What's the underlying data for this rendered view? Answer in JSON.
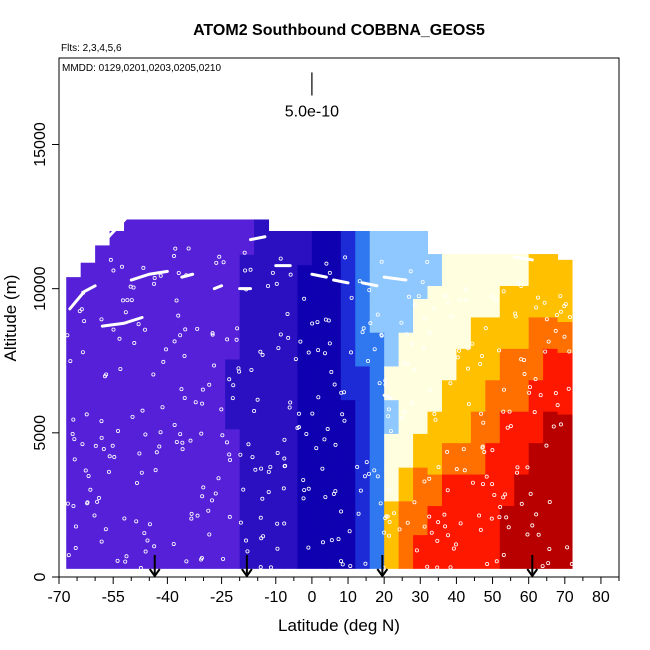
{
  "chart_data": {
    "type": "heatmap",
    "title": "ATOM2 Southbound COBBNA_GEOS5",
    "flights_note": "Flts: 2,3,4,5,6",
    "dates_note": "MMDD: 0129,0201,0203,0205,0210",
    "xlabel": "Latitude (deg N)",
    "ylabel": "Altitude (m)",
    "xlim": [
      -70,
      85
    ],
    "ylim": [
      0,
      18000
    ],
    "x_ticks_major": [
      -70,
      -55,
      -40,
      -25,
      -10,
      0,
      10,
      20,
      30,
      40,
      50,
      60,
      70,
      80
    ],
    "x_tick_labels": [
      "-70",
      "-55",
      "-40",
      "-25",
      "-10",
      "0",
      "10",
      "20",
      "30",
      "40",
      "50",
      "60",
      "70",
      "80"
    ],
    "x_ticks_minor": [
      -65,
      -60,
      -50,
      -45,
      -35,
      -30,
      -20,
      -15,
      -5,
      5,
      15,
      25,
      35,
      45,
      55,
      65,
      75,
      85
    ],
    "y_ticks": [
      0,
      5000,
      10000,
      15000
    ],
    "y_tick_labels": [
      "0",
      "5000",
      "10000",
      "15000"
    ],
    "scale_bar_label": "5.0e-10",
    "scale_bar": {
      "x": 0,
      "y_bottom": 16700,
      "y_top": 17500
    },
    "arrows_lat": [
      -43.5,
      -18,
      19.5,
      61
    ],
    "color_scale": [
      "#7a2ae8",
      "#5520d8",
      "#2a10c0",
      "#0f00b0",
      "#1c2bd6",
      "#2f78f0",
      "#8ec8ff",
      "#ffffe0",
      "#ffc000",
      "#ff7000",
      "#ff1800",
      "#b80000"
    ],
    "columns": [
      {
        "lat": -66,
        "top": 10400,
        "vals": [
          0.6,
          0.6,
          0.6,
          0.6,
          0.6,
          0.6,
          0.6,
          0.6,
          0.6,
          0.6
        ]
      },
      {
        "lat": -62,
        "top": 10900,
        "vals": [
          0.6,
          0.6,
          0.6,
          0.6,
          0.6,
          0.6,
          0.6,
          0.6,
          0.6,
          0.6
        ]
      },
      {
        "lat": -58,
        "top": 11500,
        "vals": [
          0.6,
          0.6,
          0.6,
          0.6,
          0.6,
          0.6,
          0.6,
          0.6,
          0.6,
          0.6
        ]
      },
      {
        "lat": -54,
        "top": 12000,
        "vals": [
          0.6,
          0.6,
          0.6,
          0.6,
          0.6,
          0.6,
          0.6,
          0.6,
          0.6,
          0.5
        ]
      },
      {
        "lat": -50,
        "top": 12400,
        "vals": [
          0.6,
          0.6,
          0.6,
          0.6,
          0.6,
          0.6,
          0.6,
          0.6,
          0.6,
          0.5
        ]
      },
      {
        "lat": -46,
        "top": 12400,
        "vals": [
          0.6,
          0.6,
          0.6,
          0.6,
          0.6,
          0.6,
          0.6,
          0.6,
          0.6,
          0.5
        ]
      },
      {
        "lat": -42,
        "top": 12400,
        "vals": [
          0.7,
          0.7,
          0.7,
          0.7,
          0.7,
          0.7,
          0.6,
          0.6,
          0.6,
          0.5
        ]
      },
      {
        "lat": -38,
        "top": 12400,
        "vals": [
          0.7,
          0.7,
          0.7,
          0.7,
          0.7,
          0.7,
          0.7,
          0.6,
          0.6,
          0.5
        ]
      },
      {
        "lat": -34,
        "top": 12400,
        "vals": [
          0.7,
          0.7,
          0.7,
          0.7,
          0.7,
          0.7,
          0.7,
          0.7,
          0.6,
          0.5
        ]
      },
      {
        "lat": -30,
        "top": 12400,
        "vals": [
          0.8,
          0.8,
          0.8,
          0.8,
          0.8,
          0.8,
          0.7,
          0.7,
          0.6,
          0.5
        ]
      },
      {
        "lat": -26,
        "top": 12400,
        "vals": [
          0.9,
          0.9,
          0.9,
          0.9,
          0.9,
          0.9,
          0.8,
          0.7,
          0.7,
          0.6
        ]
      },
      {
        "lat": -22,
        "top": 12400,
        "vals": [
          1.4,
          1.4,
          1.4,
          1.4,
          1.5,
          1.5,
          1.4,
          1.3,
          1.2,
          1.1
        ]
      },
      {
        "lat": -18,
        "top": 12400,
        "vals": [
          1.6,
          1.6,
          1.6,
          1.6,
          1.6,
          1.7,
          1.6,
          1.6,
          1.5,
          1.4
        ]
      },
      {
        "lat": -14,
        "top": 12400,
        "vals": [
          1.8,
          1.8,
          1.8,
          1.8,
          1.8,
          1.8,
          1.8,
          1.7,
          1.7,
          1.6
        ]
      },
      {
        "lat": -10,
        "top": 12000,
        "vals": [
          2.0,
          2.0,
          2.0,
          2.0,
          2.0,
          2.0,
          2.0,
          2.0,
          1.9,
          1.8
        ]
      },
      {
        "lat": -6,
        "top": 12000,
        "vals": [
          2.3,
          2.3,
          2.3,
          2.3,
          2.3,
          2.3,
          2.3,
          2.2,
          2.2,
          2.1
        ]
      },
      {
        "lat": -2,
        "top": 12000,
        "vals": [
          2.7,
          2.7,
          2.7,
          2.7,
          2.7,
          2.7,
          2.6,
          2.6,
          2.5,
          2.4
        ]
      },
      {
        "lat": 2,
        "top": 12000,
        "vals": [
          2.9,
          2.9,
          2.9,
          2.9,
          2.9,
          2.9,
          2.9,
          2.8,
          2.8,
          2.7
        ]
      },
      {
        "lat": 6,
        "top": 12000,
        "vals": [
          3.0,
          3.0,
          3.0,
          3.0,
          3.1,
          3.1,
          3.1,
          3.1,
          3.2,
          3.2
        ]
      },
      {
        "lat": 10,
        "top": 12000,
        "vals": [
          3.2,
          3.2,
          3.2,
          3.3,
          3.4,
          3.6,
          3.7,
          3.8,
          3.9,
          4.0
        ]
      },
      {
        "lat": 14,
        "top": 12000,
        "vals": [
          4.0,
          4.0,
          4.0,
          4.0,
          4.1,
          4.3,
          4.5,
          4.6,
          4.6,
          4.5
        ]
      },
      {
        "lat": 18,
        "top": 12000,
        "vals": [
          5.0,
          5.0,
          5.0,
          5.0,
          5.0,
          5.2,
          5.4,
          5.5,
          5.6,
          5.5
        ]
      },
      {
        "lat": 22,
        "top": 12000,
        "vals": [
          8.0,
          7.5,
          7.0,
          6.5,
          6.4,
          6.5,
          6.2,
          6.0,
          6.0,
          5.8
        ]
      },
      {
        "lat": 26,
        "top": 12000,
        "vals": [
          9.2,
          8.5,
          7.8,
          7.0,
          6.8,
          6.8,
          6.5,
          6.3,
          6.2,
          6.0
        ]
      },
      {
        "lat": 30,
        "top": 12000,
        "vals": [
          9.5,
          9.0,
          8.5,
          7.6,
          7.2,
          7.0,
          6.8,
          6.5,
          6.4,
          6.2
        ]
      },
      {
        "lat": 34,
        "top": 11200,
        "vals": [
          9.8,
          9.5,
          9.2,
          8.2,
          7.6,
          7.3,
          7.0,
          6.8,
          6.6,
          6.4
        ]
      },
      {
        "lat": 38,
        "top": 11200,
        "vals": [
          10.0,
          9.8,
          9.5,
          8.6,
          8.0,
          7.6,
          7.3,
          7.0,
          6.8,
          6.5
        ]
      },
      {
        "lat": 42,
        "top": 11200,
        "vals": [
          10.2,
          10.0,
          9.8,
          9.0,
          8.4,
          8.0,
          7.6,
          7.2,
          7.0,
          6.6
        ]
      },
      {
        "lat": 46,
        "top": 11200,
        "vals": [
          10.3,
          10.2,
          10.0,
          9.4,
          8.8,
          8.3,
          7.9,
          7.5,
          7.2,
          6.8
        ]
      },
      {
        "lat": 50,
        "top": 11200,
        "vals": [
          10.4,
          10.3,
          10.2,
          9.8,
          9.2,
          8.6,
          8.2,
          7.8,
          7.4,
          7.0
        ]
      },
      {
        "lat": 54,
        "top": 11200,
        "vals": [
          10.6,
          10.5,
          10.4,
          10.0,
          9.6,
          9.0,
          8.5,
          8.0,
          7.6,
          7.2
        ]
      },
      {
        "lat": 58,
        "top": 11200,
        "vals": [
          10.8,
          10.7,
          10.6,
          10.3,
          9.9,
          9.4,
          8.8,
          8.3,
          7.8,
          7.4
        ]
      },
      {
        "lat": 62,
        "top": 11200,
        "vals": [
          11.0,
          10.9,
          10.8,
          10.6,
          10.2,
          9.8,
          9.2,
          8.6,
          8.0,
          7.5
        ]
      },
      {
        "lat": 66,
        "top": 11200,
        "vals": [
          11.2,
          11.1,
          11.0,
          10.8,
          10.5,
          10.0,
          9.5,
          8.8,
          8.2,
          7.6
        ]
      },
      {
        "lat": 70,
        "top": 11000,
        "vals": [
          11.4,
          11.3,
          11.2,
          11.0,
          10.7,
          10.2,
          9.7,
          9.0,
          8.4,
          7.8
        ]
      }
    ],
    "column_bottom_m": 300,
    "flight_track": [
      {
        "name": "track-1",
        "points": [
          [
            -67,
            9300
          ],
          [
            -63,
            9900
          ],
          [
            -60,
            10100
          ]
        ]
      },
      {
        "name": "track-2",
        "points": [
          [
            -57,
            11700
          ],
          [
            -54,
            12100
          ],
          [
            -51,
            12500
          ]
        ]
      },
      {
        "name": "track-3",
        "points": [
          [
            -58,
            8700
          ],
          [
            -52,
            8800
          ],
          [
            -47,
            9000
          ]
        ]
      },
      {
        "name": "track-4",
        "points": [
          [
            -50,
            10300
          ],
          [
            -45,
            10500
          ],
          [
            -40,
            10600
          ]
        ]
      },
      {
        "name": "track-5",
        "points": [
          [
            -36,
            10400
          ],
          [
            -33,
            10500
          ]
        ]
      },
      {
        "name": "track-6",
        "points": [
          [
            -27,
            10000
          ],
          [
            -25,
            10100
          ]
        ]
      },
      {
        "name": "track-7",
        "points": [
          [
            -20,
            10000
          ],
          [
            -17,
            10000
          ]
        ]
      },
      {
        "name": "track-8",
        "points": [
          [
            -17,
            11700
          ],
          [
            -13,
            11800
          ]
        ]
      },
      {
        "name": "track-9",
        "points": [
          [
            -10,
            10800
          ],
          [
            -6,
            10800
          ]
        ]
      },
      {
        "name": "track-10",
        "points": [
          [
            0,
            10500
          ],
          [
            4,
            10400
          ]
        ]
      },
      {
        "name": "track-11",
        "points": [
          [
            6,
            10300
          ],
          [
            10,
            10200
          ]
        ]
      },
      {
        "name": "track-12",
        "points": [
          [
            14,
            10200
          ],
          [
            18,
            10100
          ]
        ]
      },
      {
        "name": "track-13",
        "points": [
          [
            20,
            10400
          ],
          [
            26,
            10300
          ]
        ]
      },
      {
        "name": "track-14",
        "points": [
          [
            56,
            11100
          ],
          [
            61,
            11000
          ]
        ]
      },
      {
        "name": "track-15",
        "points": [
          [
            20,
            6300
          ],
          [
            22,
            6200
          ]
        ]
      }
    ]
  }
}
